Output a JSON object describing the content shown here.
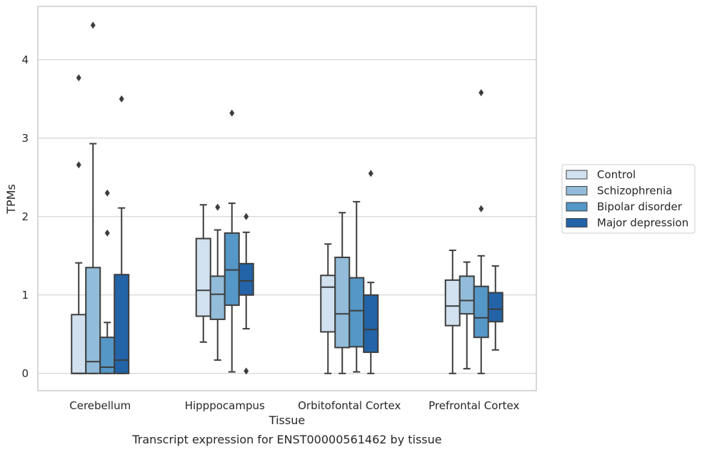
{
  "chart_data": {
    "type": "box",
    "xlabel": "Tissue",
    "ylabel": "TPMs",
    "caption": "Transcript expression for ENST00000561462 by tissue",
    "ylim": [
      -0.22,
      4.68
    ],
    "yticks": [
      0,
      1,
      2,
      3,
      4
    ],
    "grid": "horizontal",
    "legend_position": "right",
    "categories": [
      "Cerebellum",
      "Hipppocampus",
      "Orbitofontal Cortex",
      "Prefrontal Cortex"
    ],
    "series": [
      {
        "name": "Control",
        "color": "#d1e1f0",
        "boxes": [
          {
            "whislo": 0,
            "q1": 0,
            "med": 0,
            "q3": 0.75,
            "whishi": 1.41,
            "fliers": [
              2.66,
              3.77
            ]
          },
          {
            "whislo": 0.4,
            "q1": 0.73,
            "med": 1.06,
            "q3": 1.72,
            "whishi": 2.15,
            "fliers": []
          },
          {
            "whislo": 0,
            "q1": 0.53,
            "med": 1.1,
            "q3": 1.25,
            "whishi": 1.65,
            "fliers": []
          },
          {
            "whislo": 0,
            "q1": 0.61,
            "med": 0.86,
            "q3": 1.19,
            "whishi": 1.57,
            "fliers": []
          }
        ]
      },
      {
        "name": "Schizophrenia",
        "color": "#92bcd9",
        "boxes": [
          {
            "whislo": 0,
            "q1": 0,
            "med": 0.15,
            "q3": 1.35,
            "whishi": 2.93,
            "fliers": [
              4.44
            ]
          },
          {
            "whislo": 0.17,
            "q1": 0.69,
            "med": 1.01,
            "q3": 1.24,
            "whishi": 1.83,
            "fliers": [
              2.12
            ]
          },
          {
            "whislo": 0,
            "q1": 0.33,
            "med": 0.76,
            "q3": 1.48,
            "whishi": 2.05,
            "fliers": []
          },
          {
            "whislo": 0.06,
            "q1": 0.76,
            "med": 0.93,
            "q3": 1.24,
            "whishi": 1.42,
            "fliers": []
          }
        ]
      },
      {
        "name": "Bipolar disorder",
        "color": "#5597c6",
        "boxes": [
          {
            "whislo": 0,
            "q1": 0,
            "med": 0.08,
            "q3": 0.46,
            "whishi": 0.65,
            "fliers": [
              1.79,
              2.3
            ]
          },
          {
            "whislo": 0.02,
            "q1": 0.87,
            "med": 1.32,
            "q3": 1.79,
            "whishi": 2.17,
            "fliers": [
              3.32
            ]
          },
          {
            "whislo": 0.02,
            "q1": 0.34,
            "med": 0.8,
            "q3": 1.22,
            "whishi": 2.19,
            "fliers": []
          },
          {
            "whislo": 0,
            "q1": 0.46,
            "med": 0.71,
            "q3": 1.11,
            "whishi": 1.5,
            "fliers": [
              2.1,
              3.58
            ]
          }
        ]
      },
      {
        "name": "Major depression",
        "color": "#2363a7",
        "boxes": [
          {
            "whislo": 0,
            "q1": 0,
            "med": 0.17,
            "q3": 1.26,
            "whishi": 2.11,
            "fliers": [
              3.5
            ]
          },
          {
            "whislo": 0.57,
            "q1": 1.0,
            "med": 1.18,
            "q3": 1.4,
            "whishi": 1.8,
            "fliers": [
              0.03,
              2.0
            ]
          },
          {
            "whislo": 0,
            "q1": 0.27,
            "med": 0.56,
            "q3": 1.0,
            "whishi": 1.16,
            "fliers": [
              2.55
            ]
          },
          {
            "whislo": 0.3,
            "q1": 0.66,
            "med": 0.82,
            "q3": 1.03,
            "whishi": 1.37,
            "fliers": []
          }
        ]
      }
    ]
  }
}
